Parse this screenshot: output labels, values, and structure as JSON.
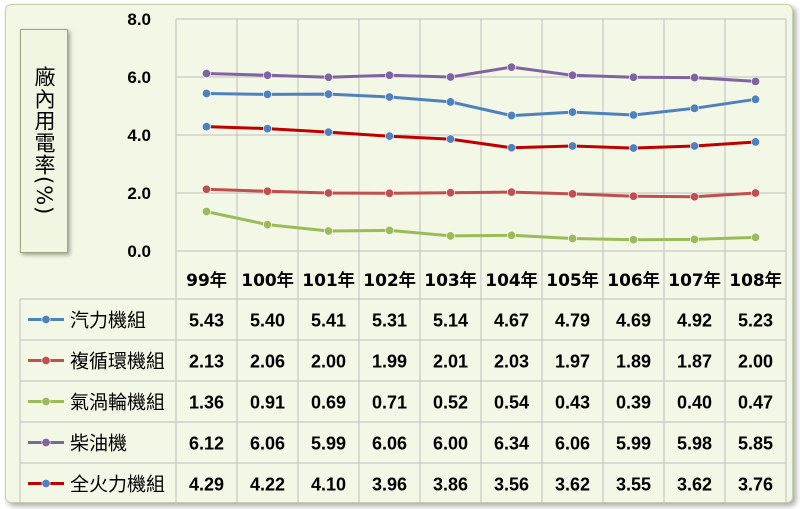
{
  "chart_data": {
    "type": "line",
    "ylabel": "廠內用電率(%)",
    "ylim": [
      0,
      8
    ],
    "yticks": [
      "0.0",
      "2.0",
      "4.0",
      "6.0",
      "8.0"
    ],
    "grid": true,
    "legend": "data-table",
    "categories": [
      "99年",
      "100年",
      "101年",
      "102年",
      "103年",
      "104年",
      "105年",
      "106年",
      "107年",
      "108年"
    ],
    "series": [
      {
        "name": "汽力機組",
        "color": "#4f81bd",
        "marker_color": "#4f81bd",
        "values": [
          5.43,
          5.4,
          5.41,
          5.31,
          5.14,
          4.67,
          4.79,
          4.69,
          4.92,
          5.23
        ],
        "labels": [
          "5.43",
          "5.40",
          "5.41",
          "5.31",
          "5.14",
          "4.67",
          "4.79",
          "4.69",
          "4.92",
          "5.23"
        ]
      },
      {
        "name": "複循環機組",
        "color": "#c0504d",
        "marker_color": "#c0504d",
        "values": [
          2.13,
          2.06,
          2.0,
          1.99,
          2.01,
          2.03,
          1.97,
          1.89,
          1.87,
          2.0
        ],
        "labels": [
          "2.13",
          "2.06",
          "2.00",
          "1.99",
          "2.01",
          "2.03",
          "1.97",
          "1.89",
          "1.87",
          "2.00"
        ]
      },
      {
        "name": "氣渦輪機組",
        "color": "#9bbb59",
        "marker_color": "#9bbb59",
        "values": [
          1.36,
          0.91,
          0.69,
          0.71,
          0.52,
          0.54,
          0.43,
          0.39,
          0.4,
          0.47
        ],
        "labels": [
          "1.36",
          "0.91",
          "0.69",
          "0.71",
          "0.52",
          "0.54",
          "0.43",
          "0.39",
          "0.40",
          "0.47"
        ]
      },
      {
        "name": "柴油機",
        "color": "#8064a2",
        "marker_color": "#8064a2",
        "values": [
          6.12,
          6.06,
          5.99,
          6.06,
          6.0,
          6.34,
          6.06,
          5.99,
          5.98,
          5.85
        ],
        "labels": [
          "6.12",
          "6.06",
          "5.99",
          "6.06",
          "6.00",
          "6.34",
          "6.06",
          "5.99",
          "5.98",
          "5.85"
        ]
      },
      {
        "name": "全火力機組",
        "color": "#c00000",
        "marker_color": "#4f81bd",
        "values": [
          4.29,
          4.22,
          4.1,
          3.96,
          3.86,
          3.56,
          3.62,
          3.55,
          3.62,
          3.76
        ],
        "labels": [
          "4.29",
          "4.22",
          "4.10",
          "3.96",
          "3.86",
          "3.56",
          "3.62",
          "3.55",
          "3.62",
          "3.76"
        ]
      }
    ]
  }
}
